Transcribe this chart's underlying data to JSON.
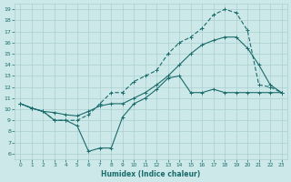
{
  "xlabel": "Humidex (Indice chaleur)",
  "background_color": "#cce8e8",
  "grid_color": "#aacfcf",
  "line_color": "#1a6b6b",
  "xlim": [
    -0.5,
    23.5
  ],
  "ylim": [
    5.5,
    19.5
  ],
  "xticks": [
    0,
    1,
    2,
    3,
    4,
    5,
    6,
    7,
    8,
    9,
    10,
    11,
    12,
    13,
    14,
    15,
    16,
    17,
    18,
    19,
    20,
    21,
    22,
    23
  ],
  "yticks": [
    6,
    7,
    8,
    9,
    10,
    11,
    12,
    13,
    14,
    15,
    16,
    17,
    18,
    19
  ],
  "line_min_x": [
    0,
    1,
    2,
    3,
    4,
    5,
    6,
    7,
    8,
    9,
    10,
    11,
    12,
    13,
    14,
    15,
    16,
    17,
    18,
    19,
    20,
    21,
    22,
    23
  ],
  "line_min_y": [
    10.5,
    10.1,
    9.8,
    9.0,
    9.0,
    8.5,
    6.2,
    6.5,
    6.5,
    9.3,
    10.5,
    11.0,
    11.8,
    12.8,
    13.0,
    11.5,
    11.5,
    11.8,
    11.5,
    11.5,
    11.5,
    11.5,
    11.5,
    11.5
  ],
  "line_mean_x": [
    0,
    1,
    2,
    3,
    4,
    5,
    6,
    7,
    8,
    9,
    10,
    11,
    12,
    13,
    14,
    15,
    16,
    17,
    18,
    19,
    20,
    21,
    22,
    23
  ],
  "line_mean_y": [
    10.5,
    10.1,
    9.8,
    9.7,
    9.5,
    9.4,
    9.8,
    10.3,
    10.5,
    10.5,
    11.0,
    11.5,
    12.2,
    13.0,
    14.0,
    15.0,
    15.8,
    16.2,
    16.5,
    16.5,
    15.5,
    14.0,
    12.2,
    11.5
  ],
  "line_max_x": [
    0,
    1,
    2,
    3,
    4,
    5,
    6,
    7,
    8,
    9,
    10,
    11,
    12,
    13,
    14,
    15,
    16,
    17,
    18,
    19,
    20,
    21,
    22,
    23
  ],
  "line_max_y": [
    10.5,
    10.1,
    9.8,
    9.0,
    9.0,
    9.0,
    9.5,
    10.5,
    11.5,
    11.5,
    12.5,
    13.0,
    13.5,
    15.0,
    16.0,
    16.5,
    17.3,
    18.5,
    19.0,
    18.7,
    17.1,
    12.2,
    12.0,
    11.5
  ]
}
